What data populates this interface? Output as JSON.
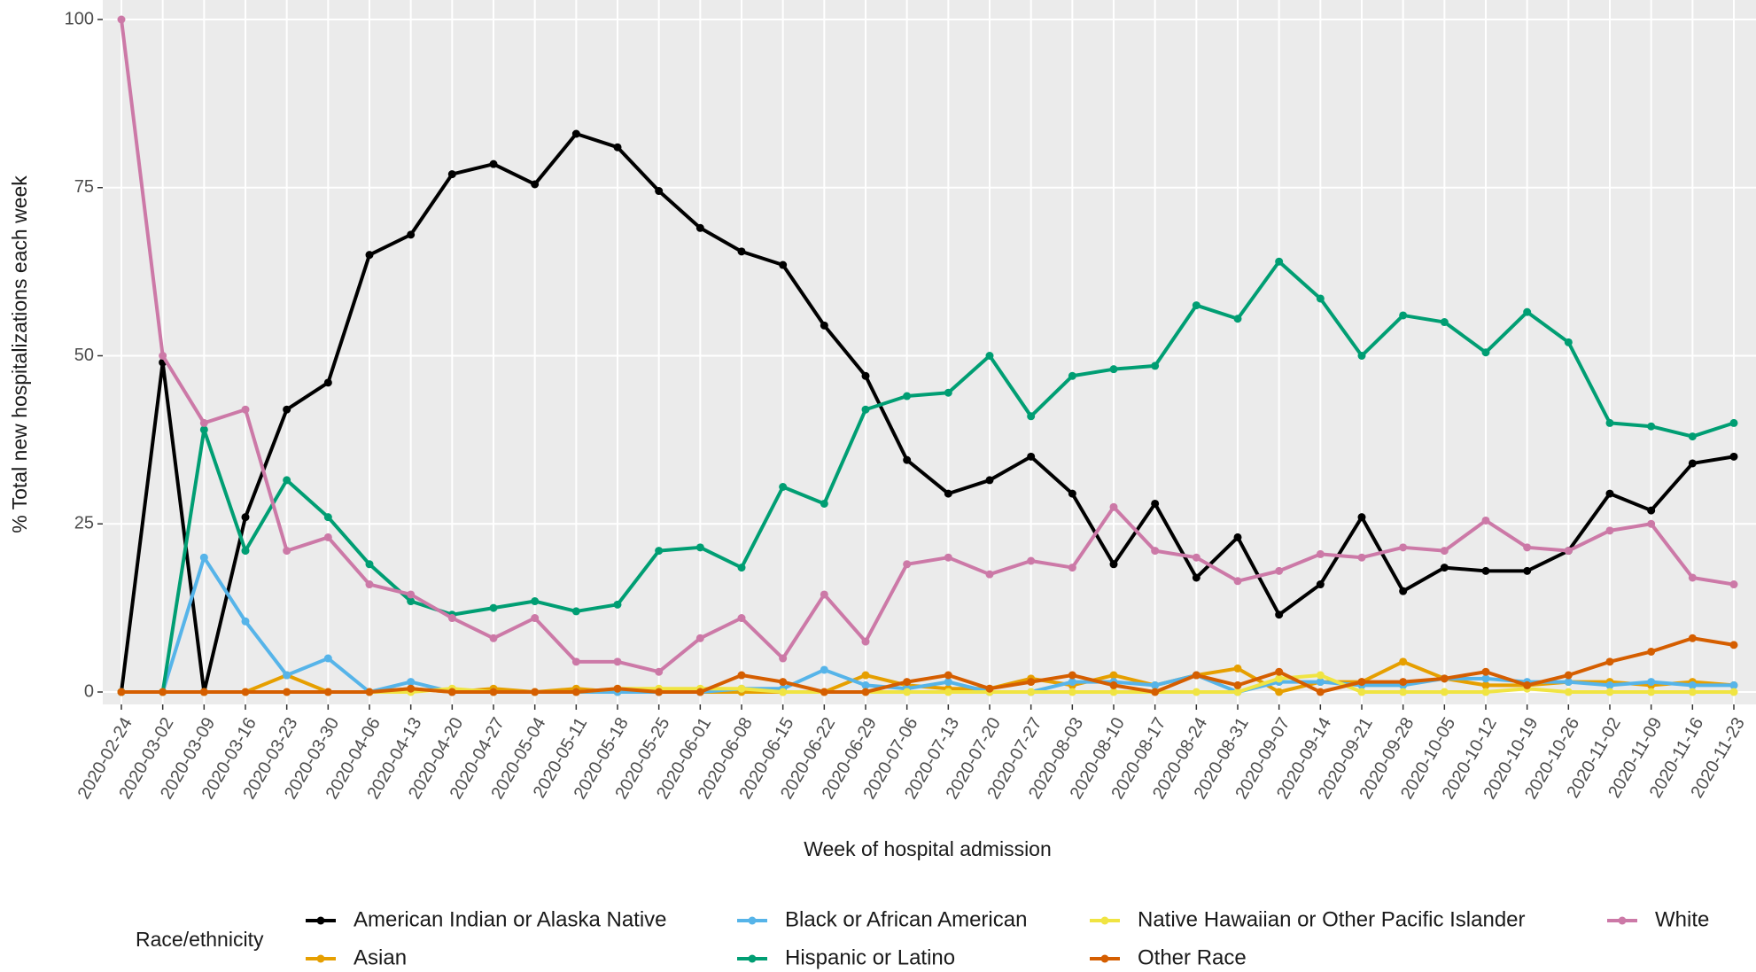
{
  "chart_data": {
    "type": "line",
    "x_label": "Week of hospital admission",
    "y_label": "% Total new hospitalizations each week",
    "legend_title": "Race/ethnicity",
    "categories": [
      "2020-02-24",
      "2020-03-02",
      "2020-03-09",
      "2020-03-16",
      "2020-03-23",
      "2020-03-30",
      "2020-04-06",
      "2020-04-13",
      "2020-04-20",
      "2020-04-27",
      "2020-05-04",
      "2020-05-11",
      "2020-05-18",
      "2020-05-25",
      "2020-06-01",
      "2020-06-08",
      "2020-06-15",
      "2020-06-22",
      "2020-06-29",
      "2020-07-06",
      "2020-07-13",
      "2020-07-20",
      "2020-07-27",
      "2020-08-03",
      "2020-08-10",
      "2020-08-17",
      "2020-08-24",
      "2020-08-31",
      "2020-09-07",
      "2020-09-14",
      "2020-09-21",
      "2020-09-28",
      "2020-10-05",
      "2020-10-12",
      "2020-10-19",
      "2020-10-26",
      "2020-11-02",
      "2020-11-09",
      "2020-11-16",
      "2020-11-23"
    ],
    "series": [
      {
        "name": "American Indian or Alaska Native",
        "color": "#000000",
        "values": [
          0,
          49,
          0,
          26,
          42,
          46,
          65,
          68,
          77,
          78.5,
          75.5,
          83,
          81,
          74.5,
          69,
          65.5,
          63.5,
          54.5,
          47,
          34.5,
          29.5,
          31.5,
          35,
          29.5,
          19,
          28,
          17,
          23,
          11.5,
          16,
          26,
          15,
          18.5,
          18,
          18,
          21,
          29.5,
          27,
          34,
          35
        ]
      },
      {
        "name": "Asian",
        "color": "#E69F00",
        "values": [
          0,
          0,
          0,
          0,
          2.5,
          0,
          0,
          0.5,
          0,
          0.5,
          0,
          0.5,
          0,
          0,
          0,
          0,
          0,
          0,
          2.5,
          1,
          0.5,
          0.5,
          2,
          1,
          2.5,
          1,
          2.5,
          3.5,
          0,
          1.5,
          1.5,
          4.5,
          2,
          1,
          1,
          1.5,
          1.5,
          1,
          1.5,
          1
        ]
      },
      {
        "name": "Black or African American",
        "color": "#56B4E9",
        "values": [
          0,
          0,
          20,
          10.5,
          2.5,
          5,
          0,
          1.5,
          0,
          0,
          0,
          0,
          0,
          0,
          0,
          0.5,
          0.5,
          3.3,
          1,
          0.5,
          1.5,
          0,
          0,
          1.5,
          1.5,
          1,
          2.5,
          0,
          1.5,
          1.5,
          1,
          1,
          2,
          2,
          1.5,
          1.5,
          1,
          1.5,
          1,
          1
        ]
      },
      {
        "name": "Hispanic or Latino",
        "color": "#009E73",
        "values": [
          0,
          0,
          39,
          21,
          31.5,
          26,
          19,
          13.5,
          11.5,
          12.5,
          13.5,
          12,
          13,
          21,
          21.5,
          18.5,
          30.5,
          28,
          42,
          44,
          44.5,
          50,
          41,
          47,
          48,
          48.5,
          57.5,
          55.5,
          64,
          58.5,
          50,
          56,
          55,
          50.5,
          56.5,
          52,
          40,
          39.5,
          38,
          40
        ]
      },
      {
        "name": "Native Hawaiian or Other Pacific Islander",
        "color": "#F0E442",
        "values": [
          0,
          0,
          0,
          0,
          0,
          0,
          0,
          0,
          0.5,
          0,
          0,
          0,
          0.5,
          0.5,
          0.5,
          0.5,
          0,
          0,
          0,
          0,
          0,
          0,
          0,
          0,
          0,
          0,
          0,
          0,
          2,
          2.5,
          0,
          0,
          0,
          0,
          0.5,
          0,
          0,
          0,
          0,
          0
        ]
      },
      {
        "name": "Other Race",
        "color": "#D55E00",
        "values": [
          0,
          0,
          0,
          0,
          0,
          0,
          0,
          0.5,
          0,
          0,
          0,
          0,
          0.5,
          0,
          0,
          2.5,
          1.5,
          0,
          0,
          1.5,
          2.5,
          0.5,
          1.5,
          2.5,
          1,
          0,
          2.5,
          1,
          3,
          0,
          1.5,
          1.5,
          2,
          3,
          1,
          2.5,
          4.5,
          6,
          8,
          7
        ]
      },
      {
        "name": "White",
        "color": "#CC79A7",
        "values": [
          100,
          50,
          40,
          42,
          21,
          23,
          16,
          14.5,
          11,
          8,
          11,
          4.5,
          4.5,
          3,
          8,
          11,
          5,
          14.5,
          7.5,
          19,
          20,
          17.5,
          19.5,
          18.5,
          27.5,
          21,
          20,
          16.5,
          18,
          20.5,
          20,
          21.5,
          21,
          25.5,
          21.5,
          21,
          24,
          25,
          17,
          16
        ]
      }
    ],
    "ylim": [
      0,
      100
    ],
    "yticks": [
      0,
      25,
      50,
      75,
      100
    ],
    "grid": true
  }
}
